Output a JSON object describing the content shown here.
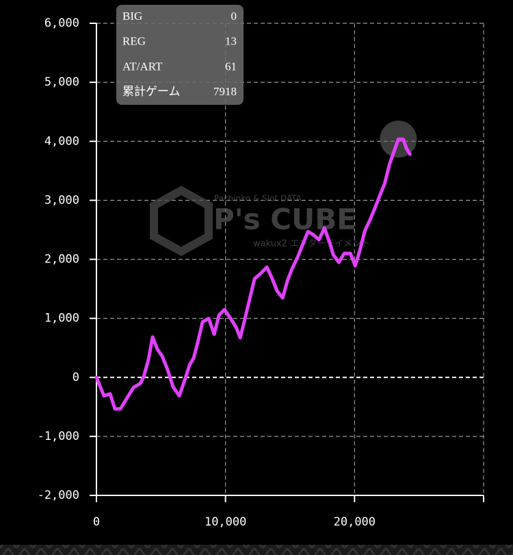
{
  "chart_data": {
    "type": "line",
    "color": "#e040fb",
    "x": [
      0,
      584,
      1061,
      1432,
      1857,
      2865,
      3395,
      3660,
      4032,
      4350,
      4721,
      5093,
      5517,
      5942,
      6419,
      6844,
      7215,
      7533,
      7851,
      8223,
      8700,
      9125,
      9496,
      9920,
      10398,
      10822,
      11141,
      11512,
      11830,
      12255,
      12679,
      13210,
      13581,
      14005,
      14430,
      14801,
      15172,
      15597,
      16021,
      16393,
      16817,
      17241,
      17666,
      18090,
      18355,
      18780,
      19204,
      19682,
      20053,
      20424,
      20796,
      21220,
      21592,
      21963,
      22334,
      22706,
      23077,
      23395,
      23767,
      24032,
      24297
    ],
    "values": [
      0,
      -313,
      -278,
      -534,
      -534,
      -174,
      -104,
      12,
      302,
      684,
      476,
      360,
      128,
      -162,
      -313,
      -46,
      209,
      325,
      592,
      940,
      998,
      731,
      1056,
      1148,
      998,
      847,
      673,
      998,
      1288,
      1671,
      1752,
      1868,
      1694,
      1462,
      1346,
      1636,
      1845,
      2042,
      2274,
      2471,
      2413,
      2332,
      2529,
      2274,
      2077,
      1949,
      2100,
      2100,
      1891,
      2158,
      2483,
      2680,
      2877,
      3086,
      3283,
      3608,
      3840,
      4037,
      4037,
      3875,
      3782
    ],
    "xlim": [
      0,
      30000
    ],
    "xticks": [
      0,
      {
        "value": 10000,
        "label": "10,000"
      },
      {
        "value": 20000,
        "label": "20,000"
      }
    ],
    "ylim": [
      -2000,
      6000
    ],
    "yticks": [
      {
        "value": -2000,
        "label": "-2,000"
      },
      {
        "value": -1000,
        "label": "-1,000"
      },
      0,
      {
        "value": 1000,
        "label": "1,000"
      },
      {
        "value": 2000,
        "label": "2,000"
      },
      {
        "value": 3000,
        "label": "3,000"
      },
      {
        "value": 4000,
        "label": "4,000"
      },
      {
        "value": 5000,
        "label": "5,000"
      },
      {
        "value": 6000,
        "label": "6,000"
      }
    ],
    "grid": true
  },
  "stats": [
    {
      "label": "BIG",
      "value": 0
    },
    {
      "label": "REG",
      "value": 13
    },
    {
      "label": "AT/ART",
      "value": 61
    },
    {
      "label": "累計ゲーム",
      "value": 7918
    }
  ],
  "watermark": {
    "subtitle": "Pachinko & Slot DATA",
    "title": "P's CUBE",
    "tagline": "wakux2 エンターテイメント"
  }
}
